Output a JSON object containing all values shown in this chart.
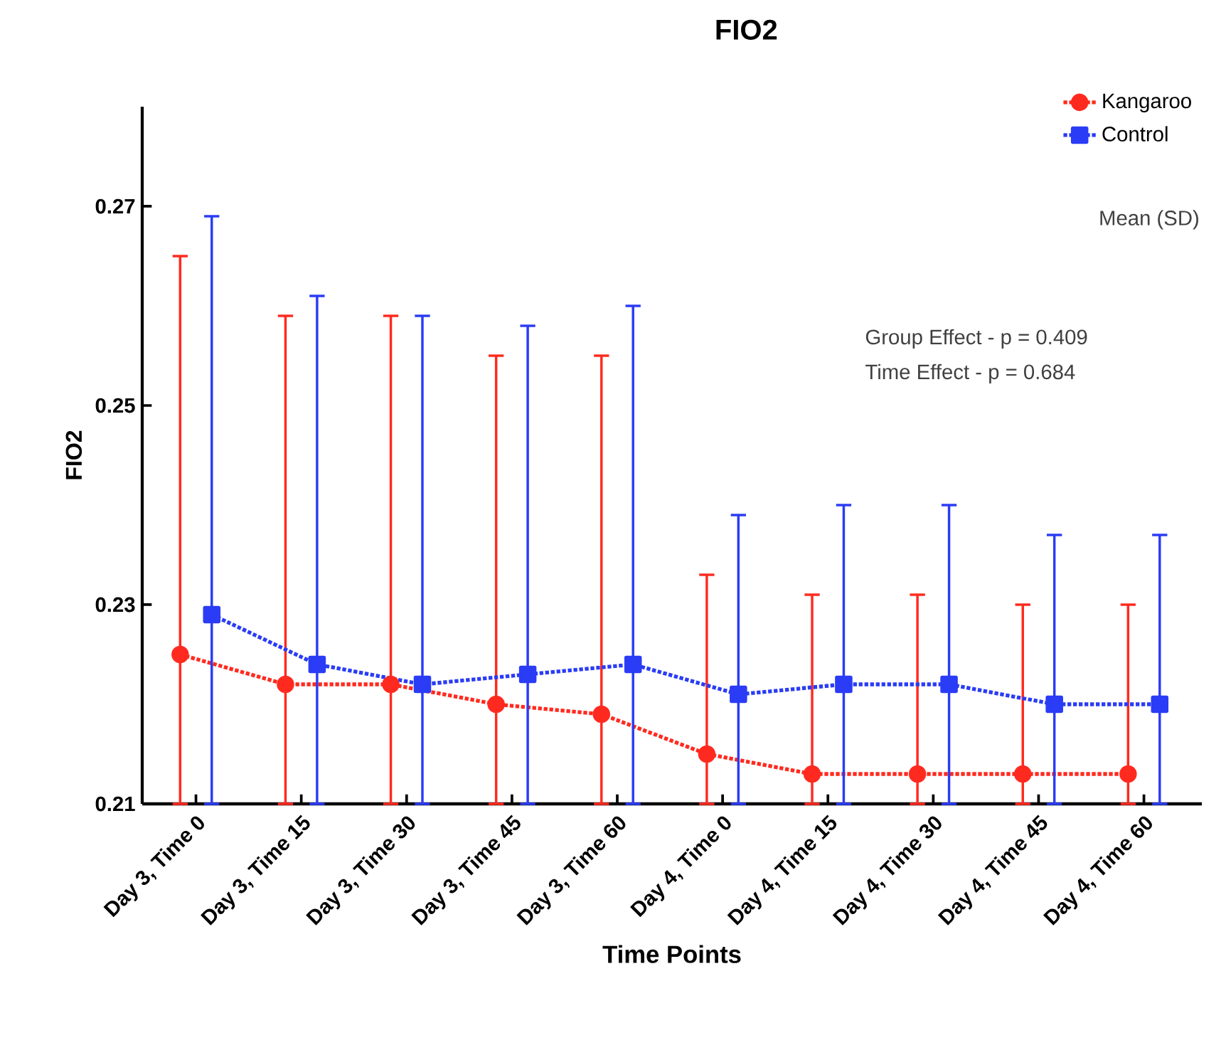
{
  "chart_data": {
    "type": "line",
    "title": "FIO2",
    "xlabel": "Time Points",
    "ylabel": "FIO2",
    "categories": [
      "Day 3, Time 0",
      "Day 3, Time 15",
      "Day 3, Time 30",
      "Day 3, Time 45",
      "Day 3, Time 60",
      "Day 4, Time 0",
      "Day 4, Time 15",
      "Day 4, Time 30",
      "Day 4, Time 45",
      "Day 4, Time 60"
    ],
    "series": [
      {
        "name": "Kangaroo",
        "color": "#ff2a1f",
        "marker": "circle",
        "values": [
          0.225,
          0.222,
          0.222,
          0.22,
          0.219,
          0.215,
          0.213,
          0.213,
          0.213,
          0.213
        ],
        "errors": [
          [
            0.21,
            0.265
          ],
          [
            0.21,
            0.259
          ],
          [
            0.21,
            0.259
          ],
          [
            0.21,
            0.255
          ],
          [
            0.21,
            0.255
          ],
          [
            0.21,
            0.233
          ],
          [
            0.21,
            0.231
          ],
          [
            0.21,
            0.231
          ],
          [
            0.21,
            0.23
          ],
          [
            0.21,
            0.23
          ]
        ]
      },
      {
        "name": "Control",
        "color": "#2a3cf5",
        "marker": "square",
        "values": [
          0.229,
          0.224,
          0.222,
          0.223,
          0.224,
          0.221,
          0.222,
          0.222,
          0.22,
          0.22
        ],
        "errors": [
          [
            0.21,
            0.269
          ],
          [
            0.21,
            0.261
          ],
          [
            0.21,
            0.259
          ],
          [
            0.21,
            0.258
          ],
          [
            0.21,
            0.26
          ],
          [
            0.21,
            0.239
          ],
          [
            0.21,
            0.24
          ],
          [
            0.21,
            0.24
          ],
          [
            0.21,
            0.237
          ],
          [
            0.21,
            0.237
          ]
        ]
      }
    ],
    "ylim": [
      0.21,
      0.28
    ],
    "yticks": [
      0.21,
      0.23,
      0.25,
      0.27
    ],
    "line_style": "dotted",
    "legend": "top right",
    "annotations": [
      "Mean (SD)",
      "Group Effect -  p = 0.409",
      "Time Effect   - p = 0.684"
    ]
  }
}
